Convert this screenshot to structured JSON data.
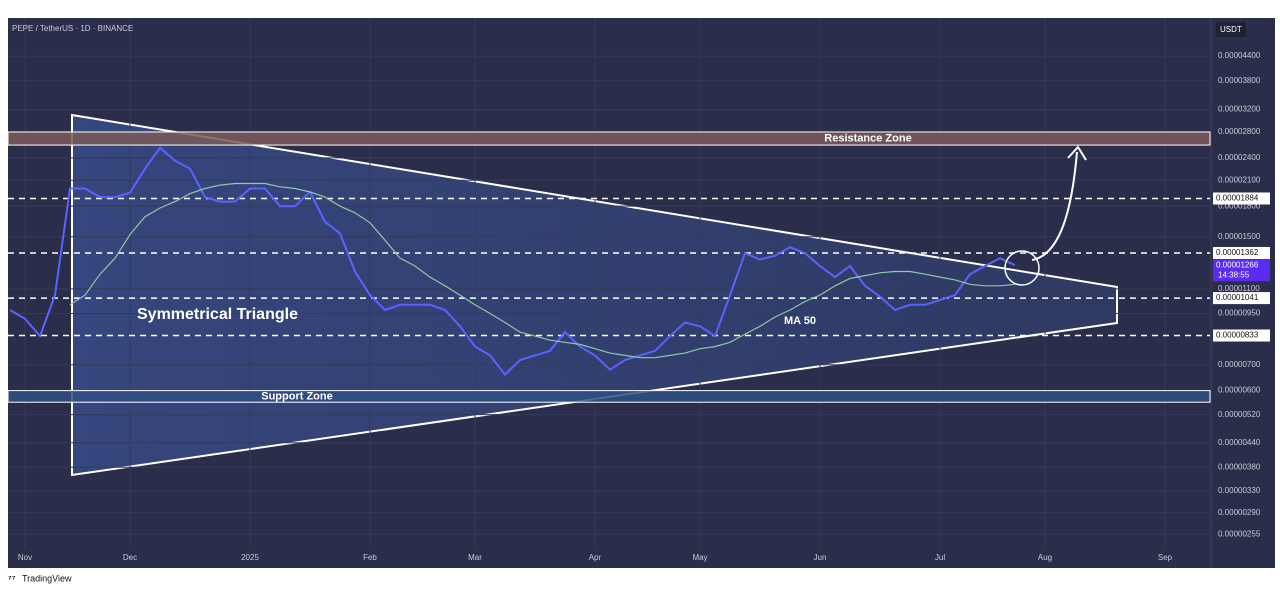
{
  "chart_data": {
    "type": "line",
    "title": "PEPE / TetherUS · 1D · BINANCE",
    "currency": "USDT",
    "log_scale": true,
    "ylim": [
      2.35e-06,
      5.52e-05
    ],
    "yticks": [
      {
        "value": 4.4e-05,
        "label": "0.00004400"
      },
      {
        "value": 3.8e-05,
        "label": "0.00003800"
      },
      {
        "value": 3.2e-05,
        "label": "0.00003200"
      },
      {
        "value": 2.8e-05,
        "label": "0.00002800"
      },
      {
        "value": 2.4e-05,
        "label": "0.00002400"
      },
      {
        "value": 2.1e-05,
        "label": "0.00002100"
      },
      {
        "value": 1.8e-05,
        "label": "0.00001800"
      },
      {
        "value": 1.5e-05,
        "label": "0.00001500"
      },
      {
        "value": 1.1e-05,
        "label": "0.00001100"
      },
      {
        "value": 9.5e-06,
        "label": "0.00000950"
      },
      {
        "value": 7e-06,
        "label": "0.00000700"
      },
      {
        "value": 6e-06,
        "label": "0.00000600"
      },
      {
        "value": 5.2e-06,
        "label": "0.00000520"
      },
      {
        "value": 4.4e-06,
        "label": "0.00000440"
      },
      {
        "value": 3.8e-06,
        "label": "0.00000380"
      },
      {
        "value": 3.3e-06,
        "label": "0.00000330"
      },
      {
        "value": 2.9e-06,
        "label": "0.00000290"
      },
      {
        "value": 2.55e-06,
        "label": "0.00000255"
      }
    ],
    "categories": [
      null,
      "Nov",
      null,
      null,
      null,
      null,
      null,
      null,
      "Dec",
      null,
      null,
      null,
      null,
      null,
      null,
      null,
      "2025",
      null,
      null,
      null,
      null,
      null,
      null,
      null,
      "Feb",
      null,
      null,
      null,
      null,
      null,
      null,
      "Mar",
      null,
      null,
      null,
      null,
      null,
      null,
      null,
      "Apr",
      null,
      null,
      null,
      null,
      null,
      null,
      "May",
      null,
      null,
      null,
      null,
      null,
      null,
      null,
      "Jun",
      null,
      null,
      null,
      null,
      null,
      null,
      null,
      "Jul",
      null,
      null,
      null,
      null,
      null,
      null,
      "Aug",
      null,
      null,
      null,
      null,
      null,
      null,
      null,
      "Sep",
      null,
      null,
      null
    ],
    "series": [
      {
        "color": "#5a63ff",
        "values": [
          9.7e-06,
          9.2e-06,
          8.3e-06,
          1.06e-05,
          2e-05,
          2e-05,
          1.9e-05,
          1.9e-05,
          1.95e-05,
          2.25e-05,
          2.55e-05,
          2.36e-05,
          2.25e-05,
          1.9e-05,
          1.85e-05,
          1.85e-05,
          2e-05,
          2e-05,
          1.8e-05,
          1.8e-05,
          1.96e-05,
          1.64e-05,
          1.53e-05,
          1.22e-05,
          1.06e-05,
          9.7e-06,
          1e-05,
          1e-05,
          1e-05,
          9.7e-06,
          8.8e-06,
          7.8e-06,
          7.4e-06,
          6.6e-06,
          7.2e-06,
          7.4e-06,
          7.6e-06,
          8.5e-06,
          7.8e-06,
          7.4e-06,
          6.8e-06,
          7.2e-06,
          7.4e-06,
          7.6e-06,
          8.3e-06,
          9e-06,
          8.8e-06,
          8.3e-06,
          1.06e-05,
          1.36e-05,
          1.31e-05,
          1.34e-05,
          1.41e-05,
          1.36e-05,
          1.26e-05,
          1.18e-05,
          1.26e-05,
          1.12e-05,
          1.05e-05,
          9.7e-06,
          1e-05,
          1e-05,
          1.03e-05,
          1.06e-05,
          1.2e-05,
          1.26e-05,
          1.32e-05,
          1.266e-05,
          null,
          null,
          null,
          null,
          null,
          null,
          null,
          null,
          null,
          null,
          null,
          null,
          null
        ]
      },
      {
        "name": "MA 50",
        "color": "#8fc9a6",
        "values": [
          null,
          null,
          null,
          null,
          1e-05,
          1.06e-05,
          1.2e-05,
          1.32e-05,
          1.52e-05,
          1.69e-05,
          1.78e-05,
          1.85e-05,
          1.94e-05,
          2e-05,
          2.04e-05,
          2.06e-05,
          2.06e-05,
          2.06e-05,
          2.02e-05,
          2e-05,
          1.96e-05,
          1.9e-05,
          1.8e-05,
          1.73e-05,
          1.63e-05,
          1.47e-05,
          1.32e-05,
          1.26e-05,
          1.18e-05,
          1.12e-05,
          1.06e-05,
          1e-05,
          9.5e-06,
          9e-06,
          8.5e-06,
          8.3e-06,
          8.1e-06,
          8e-06,
          7.9e-06,
          7.7e-06,
          7.5e-06,
          7.4e-06,
          7.3e-06,
          7.3e-06,
          7.4e-06,
          7.5e-06,
          7.7e-06,
          7.8e-06,
          8e-06,
          8.4e-06,
          8.8e-06,
          9.3e-06,
          9.7e-06,
          1.02e-05,
          1.06e-05,
          1.12e-05,
          1.17e-05,
          1.19e-05,
          1.21e-05,
          1.22e-05,
          1.22e-05,
          1.2e-05,
          1.18e-05,
          1.16e-05,
          1.13e-05,
          1.12e-05,
          1.12e-05,
          1.13e-05,
          null,
          null,
          null,
          null,
          null,
          null,
          null,
          null,
          null,
          null,
          null,
          null,
          null
        ]
      }
    ],
    "levels": [
      1.884e-05,
      1.362e-05,
      1.041e-05,
      8.33e-06
    ],
    "countdown": "14:38:55",
    "zones": [
      {
        "label": "Resistance Zone",
        "range": [
          2.59e-05,
          2.8e-05
        ]
      },
      {
        "label": "Support Zone",
        "range": [
          5.6e-06,
          6e-06
        ]
      }
    ],
    "annotations": [
      "Symmetrical Triangle"
    ]
  },
  "footer": {
    "brand": "TradingView"
  }
}
